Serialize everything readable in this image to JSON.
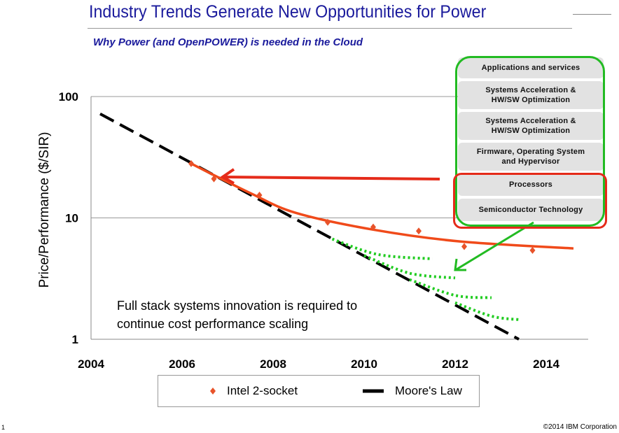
{
  "slide": {
    "title": "Industry Trends Generate New Opportunities for Power",
    "subtitle": "Why Power (and OpenPOWER) is needed in the Cloud",
    "page_number": "1",
    "copyright": "©2014 IBM Corporation",
    "annotation_line1": "Full stack systems innovation is required to",
    "annotation_line2": "continue cost performance scaling",
    "stack_layers": [
      {
        "line1": "Applications and services",
        "line2": ""
      },
      {
        "line1": "Systems Acceleration &",
        "line2": "HW/SW Optimization"
      },
      {
        "line1": "Systems Acceleration &",
        "line2": "HW/SW Optimization"
      },
      {
        "line1": "Firmware, Operating System",
        "line2": "and Hypervisor"
      },
      {
        "line1": "Processors",
        "line2": ""
      },
      {
        "line1": "Semiconductor Technology",
        "line2": ""
      }
    ],
    "colors": {
      "title": "#1a1a9c",
      "highlight_green": "#22bb22",
      "highlight_red": "#e52b1a"
    }
  },
  "chart_data": {
    "type": "scatter",
    "title": "",
    "xlabel": "",
    "ylabel": "Price/Performance ($/SIR)",
    "xlim": [
      2004,
      2015
    ],
    "ylim": [
      1,
      100
    ],
    "yscale": "log",
    "x_ticks": [
      "2004",
      "2006",
      "2008",
      "2010",
      "2012",
      "2014"
    ],
    "y_ticks": [
      "1",
      "10",
      "100"
    ],
    "grid": "horizontal",
    "legend_placement": "bottom",
    "series": [
      {
        "name": "Intel 2-socket",
        "kind": "points",
        "color": "#e8532a",
        "x": [
          2006.2,
          2006.7,
          2007.7,
          2009.2,
          2010.2,
          2011.2,
          2012.2,
          2013.7
        ],
        "y": [
          28,
          21,
          15.4,
          9.2,
          8.4,
          7.8,
          5.8,
          5.4
        ]
      },
      {
        "name": "Moore's Law",
        "kind": "dashed-line",
        "color": "#000000",
        "x": [
          2004.2,
          2013.4
        ],
        "y": [
          72,
          1
        ]
      }
    ],
    "trend_curve": {
      "color": "#f04a1a",
      "x": [
        2006.2,
        2007.5,
        2008.5,
        2010.2,
        2012.1,
        2014.6
      ],
      "y": [
        28,
        16,
        11,
        8.0,
        6.4,
        5.6
      ]
    },
    "projection_curves": {
      "color": "#22cc22",
      "curves": [
        {
          "x": [
            2009.3,
            2010.3,
            2011.5
          ],
          "y": [
            6.7,
            5.0,
            4.6
          ]
        },
        {
          "x": [
            2010.0,
            2011.0,
            2012.0
          ],
          "y": [
            4.9,
            3.5,
            3.2
          ]
        },
        {
          "x": [
            2011.0,
            2012.0,
            2012.8
          ],
          "y": [
            3.1,
            2.3,
            2.2
          ]
        },
        {
          "x": [
            2012.0,
            2012.8,
            2013.4
          ],
          "y": [
            2.0,
            1.55,
            1.45
          ]
        }
      ]
    }
  }
}
